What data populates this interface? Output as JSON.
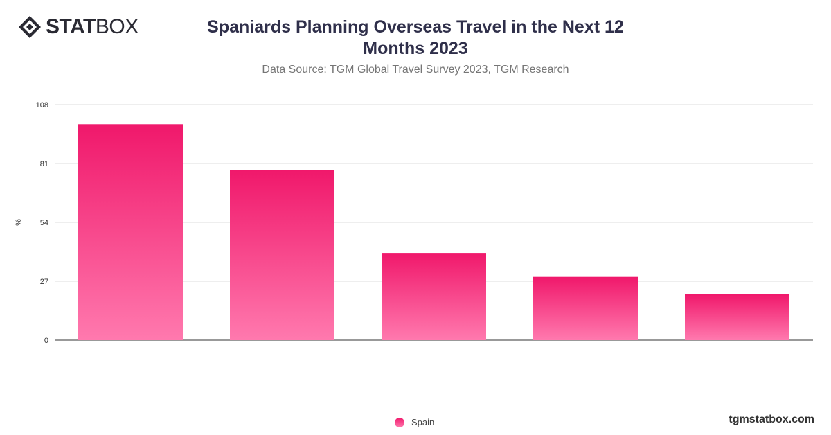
{
  "brand": {
    "logo_bold": "STAT",
    "logo_light": "BOX",
    "site": "tgmstatbox.com"
  },
  "header": {
    "title": "Spaniards Planning Overseas Travel in the Next 12 Months 2023",
    "subtitle": "Data Source: TGM Global Travel Survey 2023, TGM Research"
  },
  "colors": {
    "bar_top": "#f0186b",
    "bar_bottom": "#ff79ae"
  },
  "chart_data": {
    "type": "bar",
    "categories": [
      "",
      "",
      "",
      "",
      ""
    ],
    "series": [
      {
        "name": "Spain",
        "values": [
          99,
          78,
          40,
          29,
          21
        ]
      }
    ],
    "xlabel": "",
    "ylabel": "%",
    "ylim": [
      0,
      108
    ],
    "yticks": [
      0,
      27,
      54,
      81,
      108
    ],
    "grid": true,
    "legend": "bottom-center"
  }
}
